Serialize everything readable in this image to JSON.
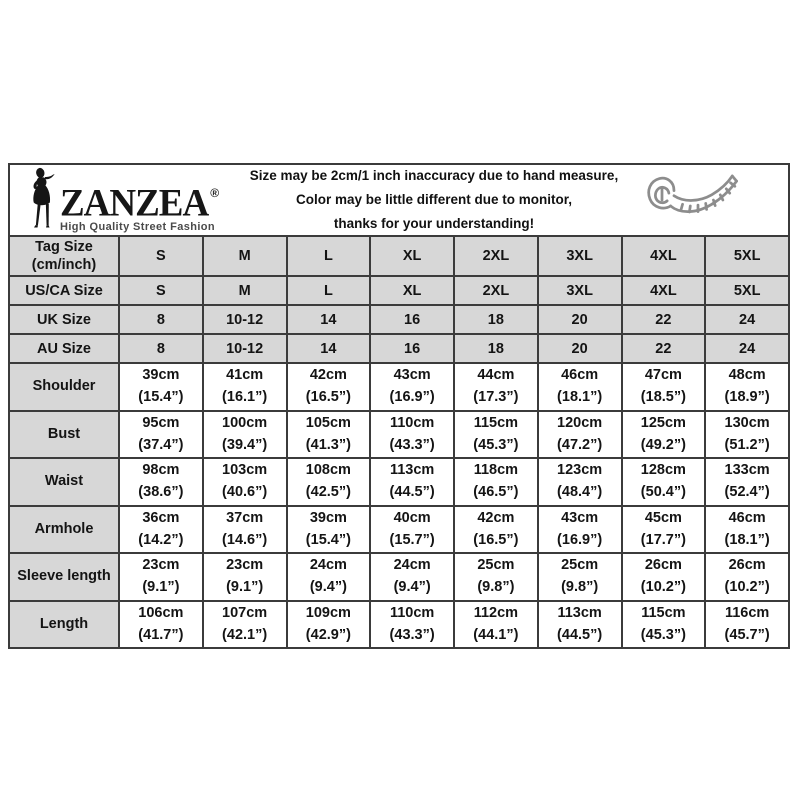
{
  "colors": {
    "border_line": "#3b3b3b",
    "header_cell_bg": "#d7d7d7",
    "text": "#141414",
    "tape_icon": "#8d8d8d"
  },
  "header": {
    "brand": "ZANZEA",
    "registered_mark": "®",
    "tagline": "High Quality Street Fashion",
    "notice_lines": [
      "Size may be 2cm/1 inch inaccuracy due to hand measure,",
      "Color may be little different due to monitor,",
      "thanks for your understanding!"
    ]
  },
  "table": {
    "rows": [
      {
        "type": "size",
        "tall": true,
        "label_lines": [
          "Tag Size",
          "(cm/inch)"
        ],
        "values": [
          "S",
          "M",
          "L",
          "XL",
          "2XL",
          "3XL",
          "4XL",
          "5XL"
        ]
      },
      {
        "type": "size",
        "tall": false,
        "label_lines": [
          "US/CA Size"
        ],
        "values": [
          "S",
          "M",
          "L",
          "XL",
          "2XL",
          "3XL",
          "4XL",
          "5XL"
        ]
      },
      {
        "type": "size",
        "tall": false,
        "label_lines": [
          "UK Size"
        ],
        "values": [
          "8",
          "10-12",
          "14",
          "16",
          "18",
          "20",
          "22",
          "24"
        ]
      },
      {
        "type": "size",
        "tall": false,
        "label_lines": [
          "AU Size"
        ],
        "values": [
          "8",
          "10-12",
          "14",
          "16",
          "18",
          "20",
          "22",
          "24"
        ]
      },
      {
        "type": "measure",
        "label_lines": [
          "Shoulder"
        ],
        "values": [
          [
            "39cm",
            "(15.4”)"
          ],
          [
            "41cm",
            "(16.1”)"
          ],
          [
            "42cm",
            "(16.5”)"
          ],
          [
            "43cm",
            "(16.9”)"
          ],
          [
            "44cm",
            "(17.3”)"
          ],
          [
            "46cm",
            "(18.1”)"
          ],
          [
            "47cm",
            "(18.5”)"
          ],
          [
            "48cm",
            "(18.9”)"
          ]
        ]
      },
      {
        "type": "measure",
        "label_lines": [
          "Bust"
        ],
        "values": [
          [
            "95cm",
            "(37.4”)"
          ],
          [
            "100cm",
            "(39.4”)"
          ],
          [
            "105cm",
            "(41.3”)"
          ],
          [
            "110cm",
            "(43.3”)"
          ],
          [
            "115cm",
            "(45.3”)"
          ],
          [
            "120cm",
            "(47.2”)"
          ],
          [
            "125cm",
            "(49.2”)"
          ],
          [
            "130cm",
            "(51.2”)"
          ]
        ]
      },
      {
        "type": "measure",
        "label_lines": [
          "Waist"
        ],
        "values": [
          [
            "98cm",
            "(38.6”)"
          ],
          [
            "103cm",
            "(40.6”)"
          ],
          [
            "108cm",
            "(42.5”)"
          ],
          [
            "113cm",
            "(44.5”)"
          ],
          [
            "118cm",
            "(46.5”)"
          ],
          [
            "123cm",
            "(48.4”)"
          ],
          [
            "128cm",
            "(50.4”)"
          ],
          [
            "133cm",
            "(52.4”)"
          ]
        ]
      },
      {
        "type": "measure",
        "label_lines": [
          "Armhole"
        ],
        "values": [
          [
            "36cm",
            "(14.2”)"
          ],
          [
            "37cm",
            "(14.6”)"
          ],
          [
            "39cm",
            "(15.4”)"
          ],
          [
            "40cm",
            "(15.7”)"
          ],
          [
            "42cm",
            "(16.5”)"
          ],
          [
            "43cm",
            "(16.9”)"
          ],
          [
            "45cm",
            "(17.7”)"
          ],
          [
            "46cm",
            "(18.1”)"
          ]
        ]
      },
      {
        "type": "measure",
        "label_lines": [
          "Sleeve length"
        ],
        "values": [
          [
            "23cm",
            "(9.1”)"
          ],
          [
            "23cm",
            "(9.1”)"
          ],
          [
            "24cm",
            "(9.4”)"
          ],
          [
            "24cm",
            "(9.4”)"
          ],
          [
            "25cm",
            "(9.8”)"
          ],
          [
            "25cm",
            "(9.8”)"
          ],
          [
            "26cm",
            "(10.2”)"
          ],
          [
            "26cm",
            "(10.2”)"
          ]
        ]
      },
      {
        "type": "measure",
        "label_lines": [
          "Length"
        ],
        "values": [
          [
            "106cm",
            "(41.7”)"
          ],
          [
            "107cm",
            "(42.1”)"
          ],
          [
            "109cm",
            "(42.9”)"
          ],
          [
            "110cm",
            "(43.3”)"
          ],
          [
            "112cm",
            "(44.1”)"
          ],
          [
            "113cm",
            "(44.5”)"
          ],
          [
            "115cm",
            "(45.3”)"
          ],
          [
            "116cm",
            "(45.7”)"
          ]
        ]
      }
    ]
  },
  "chart_data": {
    "type": "table",
    "title": "ZANZEA garment size chart (cm / inch)",
    "columns": [
      "Tag Size (cm/inch)",
      "S",
      "M",
      "L",
      "XL",
      "2XL",
      "3XL",
      "4XL",
      "5XL"
    ],
    "rows": [
      [
        "US/CA Size",
        "S",
        "M",
        "L",
        "XL",
        "2XL",
        "3XL",
        "4XL",
        "5XL"
      ],
      [
        "UK Size",
        "8",
        "10-12",
        "14",
        "16",
        "18",
        "20",
        "22",
        "24"
      ],
      [
        "AU Size",
        "8",
        "10-12",
        "14",
        "16",
        "18",
        "20",
        "22",
        "24"
      ],
      [
        "Shoulder",
        "39cm (15.4”)",
        "41cm (16.1”)",
        "42cm (16.5”)",
        "43cm (16.9”)",
        "44cm (17.3”)",
        "46cm (18.1”)",
        "47cm (18.5”)",
        "48cm (18.9”)"
      ],
      [
        "Bust",
        "95cm (37.4”)",
        "100cm (39.4”)",
        "105cm (41.3”)",
        "110cm (43.3”)",
        "115cm (45.3”)",
        "120cm (47.2”)",
        "125cm (49.2”)",
        "130cm (51.2”)"
      ],
      [
        "Waist",
        "98cm (38.6”)",
        "103cm (40.6”)",
        "108cm (42.5”)",
        "113cm (44.5”)",
        "118cm (46.5”)",
        "123cm (48.4”)",
        "128cm (50.4”)",
        "133cm (52.4”)"
      ],
      [
        "Armhole",
        "36cm (14.2”)",
        "37cm (14.6”)",
        "39cm (15.4”)",
        "40cm (15.7”)",
        "42cm (16.5”)",
        "43cm (16.9”)",
        "45cm (17.7”)",
        "46cm (18.1”)"
      ],
      [
        "Sleeve length",
        "23cm (9.1”)",
        "23cm (9.1”)",
        "24cm (9.4”)",
        "24cm (9.4”)",
        "25cm (9.8”)",
        "25cm (9.8”)",
        "26cm (10.2”)",
        "26cm (10.2”)"
      ],
      [
        "Length",
        "106cm (41.7”)",
        "107cm (42.1”)",
        "109cm (42.9”)",
        "110cm (43.3”)",
        "112cm (44.1”)",
        "113cm (44.5”)",
        "115cm (45.3”)",
        "116cm (45.7”)"
      ]
    ]
  }
}
